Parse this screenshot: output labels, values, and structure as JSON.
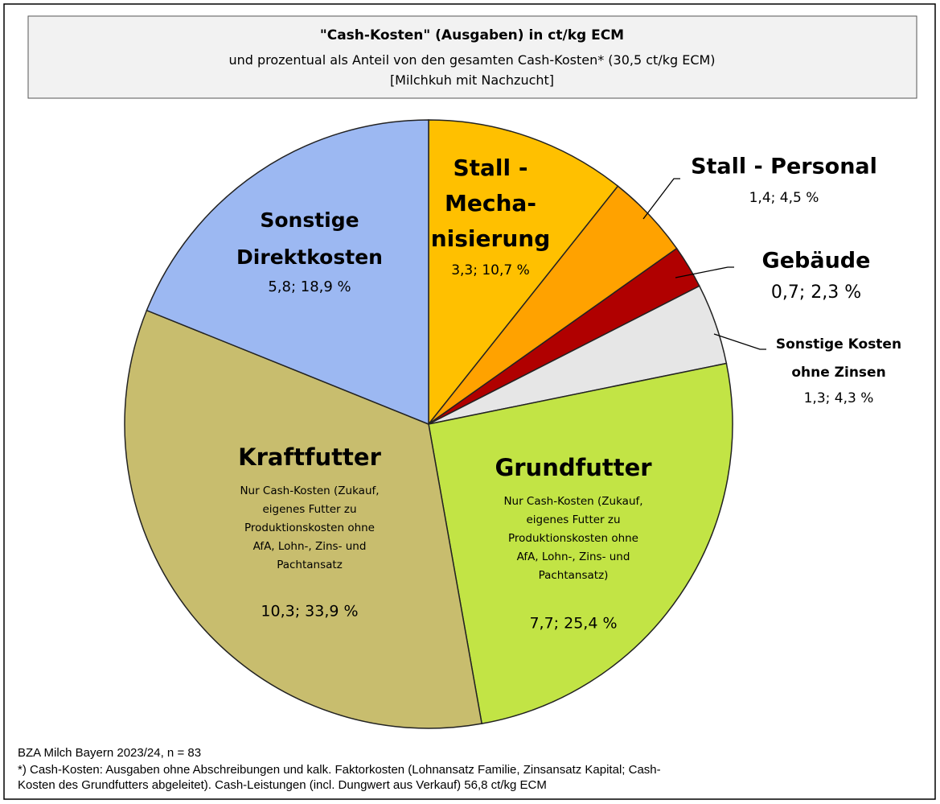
{
  "chart_data": {
    "type": "pie",
    "title": "\"Cash-Kosten\" (Ausgaben) in ct/kg ECM",
    "subtitle": "und prozentual als Anteil von den gesamten Cash-Kosten* (30,5 ct/kg ECM)\n[Milchkuh mit Nachzucht]",
    "categories": [
      "Stall -\nMecha-\nnisierung",
      "Stall - Personal",
      "Gebäude",
      "Sonstige Kosten\nohne Zinsen",
      "Grundfutter",
      "Kraftfutter",
      "Sonstige\nDirektkosten"
    ],
    "values": [
      10.7,
      4.5,
      2.3,
      4.3,
      25.4,
      33.9,
      18.9
    ],
    "value_labels": [
      "3,3; 10,7 %",
      "1,4; 4,5 %",
      "0,7; 2,3 %",
      "1,3; 4,3 %",
      "7,7; 25,4 %",
      "10,3; 33,9 %",
      "5,8; 18,9 %"
    ],
    "notes": [
      null,
      null,
      null,
      null,
      "Nur Cash-Kosten (Zukauf,\neigenes Futter zu\nProduktionskosten ohne\nAfA, Lohn-, Zins- und\nPachtansatz)",
      "Nur Cash-Kosten (Zukauf,\neigenes Futter zu\nProduktionskosten ohne\nAfA, Lohn-, Zins- und\nPachtansatz",
      null
    ],
    "colors": [
      "#ffc000",
      "#ffa200",
      "#b00000",
      "#e6e6e6",
      "#c2e445",
      "#c8bd6e",
      "#9cb8f2"
    ],
    "source": "BZA Milch Bayern 2023/24, n = 83",
    "footnote": "*) Cash-Kosten:  Ausgaben ohne Abschreibungen und kalk. Faktorkosten (Lohnansatz Familie,  Zinsansatz Kapital; Cash-\nKosten des Grundfutters abgeleitet). Cash-Leistungen (incl. Dungwert aus Verkauf) 56,8 ct/kg ECM"
  }
}
